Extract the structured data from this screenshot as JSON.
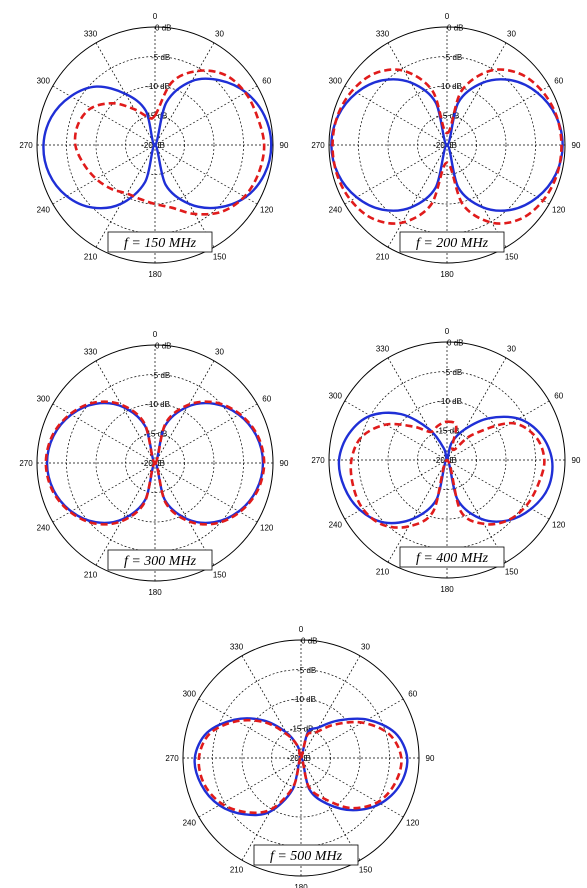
{
  "chart_data": [
    {
      "type": "polar-line",
      "label": "f = 150 MHz",
      "r_ticks": [
        "0 dB",
        "-5 dB",
        "-10 dB",
        "-15 dB",
        "-20 dB"
      ],
      "r_range_db": [
        -20,
        0
      ],
      "angle_ticks": [
        "0",
        "30",
        "60",
        "90",
        "120",
        "150",
        "180",
        "210",
        "240",
        "270",
        "300",
        "330"
      ],
      "series": [
        {
          "color": "#1f2fd6",
          "style": "solid",
          "theta_deg": [
            0,
            15,
            30,
            45,
            60,
            75,
            90,
            105,
            120,
            135,
            150,
            165,
            180,
            195,
            210,
            225,
            240,
            255,
            270,
            285,
            300,
            315,
            330,
            345
          ],
          "r_db": [
            -20,
            -12.5,
            -7.5,
            -4.5,
            -2.2,
            -0.8,
            -0.3,
            -0.8,
            -2.3,
            -5,
            -8.5,
            -13,
            -20,
            -13.5,
            -8.5,
            -5,
            -2.7,
            -1.4,
            -1.1,
            -1.8,
            -3.5,
            -6,
            -10,
            -14
          ]
        },
        {
          "color": "#e01b1b",
          "style": "dashed",
          "theta_deg": [
            0,
            15,
            30,
            45,
            60,
            75,
            90,
            105,
            120,
            135,
            150,
            165,
            180,
            195,
            210,
            225,
            240,
            255,
            270,
            285,
            300,
            315,
            330,
            345
          ],
          "r_db": [
            -15,
            -9,
            -5.5,
            -3.2,
            -2.3,
            -2,
            -1.5,
            -1.8,
            -2.5,
            -4,
            -6.5,
            -9,
            -10,
            -10.5,
            -10.5,
            -9.5,
            -8.5,
            -7.5,
            -6.5,
            -6.5,
            -7.5,
            -10,
            -13,
            -15
          ]
        }
      ]
    },
    {
      "type": "polar-line",
      "label": "f = 200 MHz",
      "r_ticks": [
        "0 dB",
        "-5 dB",
        "-10 dB",
        "-15 dB",
        "-20 dB"
      ],
      "r_range_db": [
        -20,
        0
      ],
      "angle_ticks": [
        "0",
        "30",
        "60",
        "90",
        "120",
        "150",
        "180",
        "210",
        "240",
        "270",
        "300",
        "330"
      ],
      "series": [
        {
          "color": "#1f2fd6",
          "style": "solid",
          "theta_deg": [
            0,
            15,
            30,
            45,
            60,
            75,
            90,
            105,
            120,
            135,
            150,
            165,
            180,
            195,
            210,
            225,
            240,
            255,
            270,
            285,
            300,
            315,
            330,
            345
          ],
          "r_db": [
            -20,
            -12.5,
            -7.8,
            -4.5,
            -2.3,
            -0.9,
            -0.4,
            -0.9,
            -2.3,
            -4.5,
            -7.8,
            -12.5,
            -20,
            -12.5,
            -7.8,
            -4.5,
            -2.3,
            -0.9,
            -0.4,
            -0.9,
            -2.3,
            -4.5,
            -7.8,
            -12.5
          ]
        },
        {
          "color": "#e01b1b",
          "style": "dashed",
          "theta_deg": [
            0,
            15,
            30,
            45,
            60,
            75,
            90,
            105,
            120,
            135,
            150,
            165,
            180,
            195,
            210,
            225,
            240,
            255,
            270,
            285,
            300,
            315,
            330,
            345
          ],
          "r_db": [
            -18,
            -10.5,
            -5.5,
            -2.8,
            -1.5,
            -0.8,
            -0.6,
            -0.7,
            -1.2,
            -2.3,
            -4.8,
            -9.5,
            -17,
            -9.5,
            -4.8,
            -2.3,
            -1.2,
            -0.7,
            -0.6,
            -0.8,
            -1.5,
            -2.8,
            -5.5,
            -10.5
          ]
        }
      ]
    },
    {
      "type": "polar-line",
      "label": "f = 300 MHz",
      "r_ticks": [
        "0 dB",
        "-5 dB",
        "-10 dB",
        "-15 dB",
        "-20 dB"
      ],
      "r_range_db": [
        -20,
        0
      ],
      "angle_ticks": [
        "0",
        "30",
        "60",
        "90",
        "120",
        "150",
        "180",
        "210",
        "240",
        "270",
        "300",
        "330"
      ],
      "series": [
        {
          "color": "#1f2fd6",
          "style": "solid",
          "theta_deg": [
            0,
            15,
            30,
            45,
            60,
            75,
            90,
            105,
            120,
            135,
            150,
            165,
            180,
            195,
            210,
            225,
            240,
            255,
            270,
            285,
            300,
            315,
            330,
            345
          ],
          "r_db": [
            -20,
            -13.5,
            -9,
            -5.8,
            -3.6,
            -2.2,
            -1.7,
            -2.2,
            -3.6,
            -5.8,
            -9,
            -13.5,
            -20,
            -13.5,
            -9,
            -5.8,
            -3.6,
            -2.2,
            -1.7,
            -2.2,
            -3.6,
            -5.8,
            -9,
            -13.5
          ]
        },
        {
          "color": "#e01b1b",
          "style": "dashed",
          "theta_deg": [
            0,
            15,
            30,
            45,
            60,
            75,
            90,
            105,
            120,
            135,
            150,
            165,
            180,
            195,
            210,
            225,
            240,
            255,
            270,
            285,
            300,
            315,
            330,
            345
          ],
          "r_db": [
            -20,
            -13,
            -8.6,
            -5.5,
            -3.4,
            -2,
            -1.5,
            -2,
            -3.4,
            -5.5,
            -8.6,
            -13,
            -20,
            -13,
            -8.6,
            -5.5,
            -3.4,
            -2,
            -1.5,
            -2,
            -3.4,
            -5.5,
            -8.6,
            -13
          ]
        }
      ]
    },
    {
      "type": "polar-line",
      "label": "f = 400 MHz",
      "r_ticks": [
        "0 dB",
        "-5 dB",
        "-10 dB",
        "-15 dB",
        "-20 dB"
      ],
      "r_range_db": [
        -20,
        0
      ],
      "angle_ticks": [
        "0",
        "30",
        "60",
        "90",
        "120",
        "150",
        "180",
        "210",
        "240",
        "270",
        "300",
        "330"
      ],
      "series": [
        {
          "color": "#1f2fd6",
          "style": "solid",
          "theta_deg": [
            0,
            15,
            30,
            45,
            60,
            75,
            90,
            105,
            120,
            135,
            150,
            165,
            180,
            195,
            210,
            225,
            240,
            255,
            270,
            285,
            300,
            315,
            330,
            345
          ],
          "r_db": [
            -20,
            -17,
            -14,
            -10,
            -6,
            -3.5,
            -2.2,
            -2.2,
            -3.5,
            -5.5,
            -8.5,
            -13,
            -20,
            -13,
            -8.5,
            -5,
            -3,
            -2,
            -1.7,
            -2.8,
            -5,
            -9,
            -14,
            -18
          ]
        },
        {
          "color": "#e01b1b",
          "style": "dashed",
          "theta_deg": [
            0,
            15,
            30,
            45,
            60,
            75,
            90,
            105,
            120,
            135,
            150,
            165,
            180,
            195,
            210,
            225,
            240,
            255,
            270,
            285,
            300,
            315,
            330,
            345
          ],
          "r_db": [
            -13.5,
            -14,
            -18,
            -14,
            -7.5,
            -4.5,
            -3.5,
            -4,
            -4.5,
            -5.5,
            -7.5,
            -11,
            -20,
            -11,
            -7,
            -4.5,
            -3.5,
            -3.5,
            -3.8,
            -5,
            -8,
            -12,
            -14.5,
            -14
          ]
        }
      ]
    },
    {
      "type": "polar-line",
      "label": "f = 500 MHz",
      "r_ticks": [
        "0 dB",
        "-5 dB",
        "-10 dB",
        "-15 dB",
        "-20 dB"
      ],
      "r_range_db": [
        -20,
        0
      ],
      "angle_ticks": [
        "0",
        "30",
        "60",
        "90",
        "120",
        "150",
        "180",
        "210",
        "240",
        "270",
        "300",
        "330"
      ],
      "series": [
        {
          "color": "#1f2fd6",
          "style": "solid",
          "theta_deg": [
            0,
            15,
            30,
            45,
            60,
            75,
            90,
            105,
            120,
            135,
            150,
            165,
            180,
            195,
            210,
            225,
            240,
            255,
            270,
            285,
            300,
            315,
            330,
            345
          ],
          "r_db": [
            -20,
            -15.5,
            -14,
            -11,
            -7,
            -3.5,
            -2,
            -2.6,
            -4.5,
            -7.5,
            -11,
            -14.5,
            -20,
            -14.5,
            -9.5,
            -6.5,
            -4,
            -2.5,
            -2,
            -3.5,
            -7,
            -11,
            -15,
            -18
          ]
        },
        {
          "color": "#e01b1b",
          "style": "dashed",
          "theta_deg": [
            0,
            15,
            30,
            45,
            60,
            75,
            90,
            105,
            120,
            135,
            150,
            165,
            180,
            195,
            210,
            225,
            240,
            255,
            270,
            285,
            300,
            315,
            330,
            345
          ],
          "r_db": [
            -20,
            -16,
            -15,
            -12,
            -8,
            -4.5,
            -3,
            -3.5,
            -5,
            -8,
            -12,
            -15,
            -20,
            -15,
            -10,
            -7,
            -4.5,
            -3,
            -2.7,
            -4,
            -7.5,
            -11.5,
            -15.5,
            -18
          ]
        }
      ]
    }
  ]
}
